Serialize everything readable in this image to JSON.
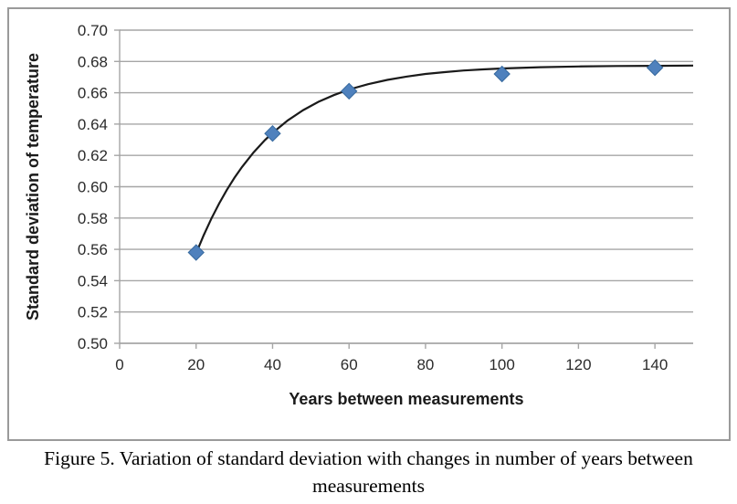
{
  "figure": {
    "caption_line1": "Figure 5. Variation of standard deviation with changes in number of years between",
    "caption_line2": "measurements"
  },
  "chart_data": {
    "type": "scatter",
    "title": "",
    "xlabel": "Years between measurements",
    "ylabel": "Standard deviation of temperature",
    "xlim": [
      0,
      150
    ],
    "ylim": [
      0.5,
      0.7
    ],
    "x_ticks": [
      0,
      20,
      40,
      60,
      80,
      100,
      120,
      140
    ],
    "y_ticks": [
      0.5,
      0.52,
      0.54,
      0.56,
      0.58,
      0.6,
      0.62,
      0.64,
      0.66,
      0.68,
      0.7
    ],
    "grid": "horizontal",
    "legend": "none",
    "points": {
      "x": [
        20,
        40,
        60,
        100,
        140
      ],
      "y": [
        0.558,
        0.634,
        0.661,
        0.672,
        0.676
      ]
    },
    "trend_curve": {
      "x": [
        20,
        22,
        24,
        26,
        28,
        30,
        32,
        35,
        38,
        40,
        44,
        48,
        52,
        56,
        60,
        65,
        70,
        75,
        80,
        85,
        90,
        95,
        100,
        110,
        120,
        130,
        140,
        150
      ],
      "y": [
        0.5574,
        0.5691,
        0.5797,
        0.5892,
        0.5978,
        0.6056,
        0.6126,
        0.6218,
        0.6298,
        0.6344,
        0.6424,
        0.6489,
        0.6542,
        0.6585,
        0.6621,
        0.6655,
        0.6682,
        0.6703,
        0.672,
        0.6732,
        0.6742,
        0.6749,
        0.6755,
        0.6763,
        0.6768,
        0.6771,
        0.6772,
        0.6774
      ]
    },
    "colors": {
      "marker": "#4f81bd",
      "marker_edge": "#36699e",
      "curve": "#1a1a1a",
      "grid": "#a6a6a6",
      "axis": "#a6a6a6",
      "tick_label": "#2b2b2b",
      "axis_title": "#1a1a1a"
    }
  }
}
